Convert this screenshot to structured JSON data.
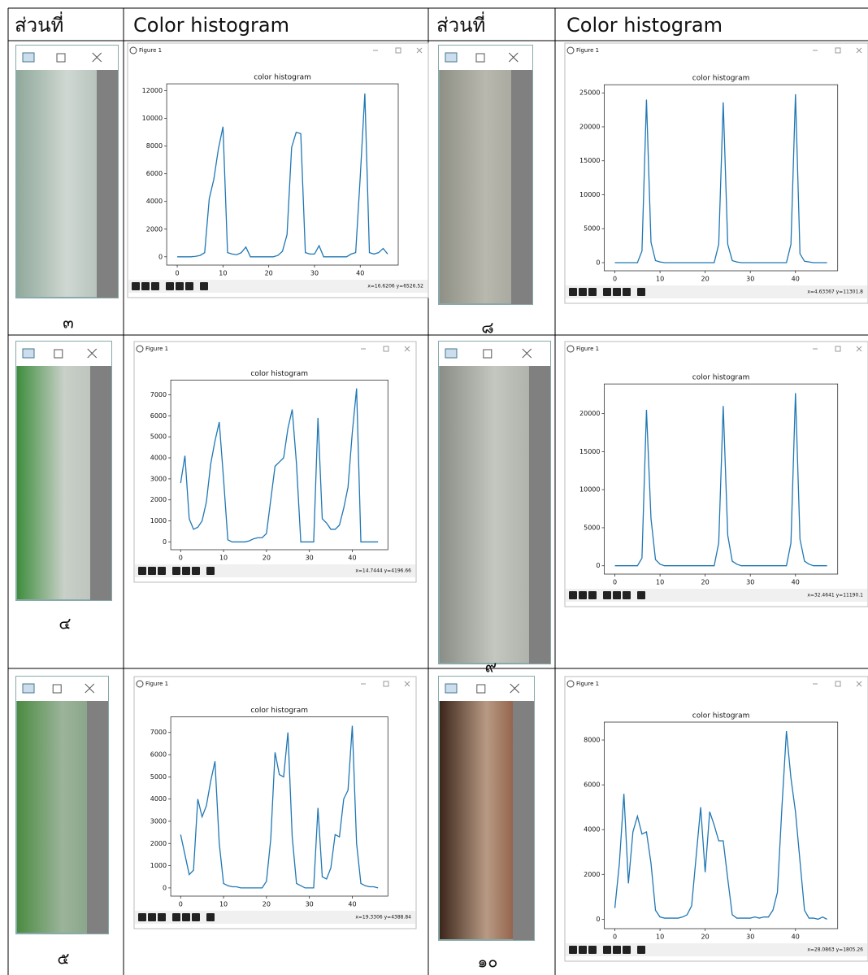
{
  "header": [
    "ส่วนที่",
    "Color histogram",
    "ส่วนที่",
    "Color histogram"
  ],
  "panels": [
    {
      "part_label": "๓",
      "window_title": "Figure 1",
      "status": "x=16.6206    y=6526.52",
      "chart": {
        "type": "line",
        "title": "color histogram",
        "color": "#1f77b4",
        "x": [
          0,
          1,
          2,
          3,
          4,
          5,
          6,
          7,
          8,
          9,
          10,
          11,
          12,
          13,
          14,
          15,
          16,
          17,
          18,
          19,
          20,
          21,
          22,
          23,
          24,
          25,
          26,
          27,
          28,
          29,
          30,
          31,
          32,
          33,
          34,
          35,
          36,
          37,
          38,
          39,
          40,
          41,
          42,
          43,
          44,
          45,
          46
        ],
        "values": [
          0,
          0,
          0,
          0,
          30,
          100,
          300,
          4200,
          5600,
          7800,
          9400,
          300,
          200,
          150,
          300,
          700,
          0,
          0,
          0,
          0,
          0,
          0,
          100,
          400,
          1600,
          7900,
          9000,
          8900,
          300,
          200,
          200,
          800,
          0,
          0,
          0,
          0,
          0,
          0,
          200,
          300,
          5800,
          11800,
          300,
          200,
          300,
          600,
          200
        ],
        "xlim": [
          -2.3,
          48.3
        ],
        "xticks": [
          0,
          10,
          20,
          30,
          40
        ],
        "ylim": [
          -600,
          12500
        ],
        "yticks": [
          0,
          2000,
          4000,
          6000,
          8000,
          10000,
          12000
        ]
      }
    },
    {
      "part_label": "๘",
      "window_title": "Figure 1",
      "status": "x=4.63367    y=11301.8",
      "chart": {
        "type": "line",
        "title": "color histogram",
        "color": "#1f77b4",
        "x": [
          0,
          1,
          2,
          3,
          4,
          5,
          6,
          7,
          8,
          9,
          10,
          11,
          12,
          13,
          14,
          15,
          16,
          17,
          18,
          19,
          20,
          21,
          22,
          23,
          24,
          25,
          26,
          27,
          28,
          29,
          30,
          31,
          32,
          33,
          34,
          35,
          36,
          37,
          38,
          39,
          40,
          41,
          42,
          43,
          44,
          45,
          46,
          47
        ],
        "values": [
          0,
          0,
          0,
          0,
          0,
          0,
          1700,
          24000,
          3000,
          300,
          100,
          0,
          0,
          0,
          0,
          0,
          0,
          0,
          0,
          0,
          0,
          0,
          0,
          2700,
          23600,
          2700,
          300,
          100,
          0,
          0,
          0,
          0,
          0,
          0,
          0,
          0,
          0,
          0,
          0,
          2700,
          24800,
          1300,
          200,
          100,
          0,
          0,
          0,
          0
        ],
        "xlim": [
          -2.35,
          49.35
        ],
        "xticks": [
          0,
          10,
          20,
          30,
          40
        ],
        "ylim": [
          -1200,
          26200
        ],
        "yticks": [
          0,
          5000,
          10000,
          15000,
          20000,
          25000
        ]
      }
    },
    {
      "part_label": "๔",
      "window_title": "Figure 1",
      "status": "x=14.7444    y=4196.66",
      "chart": {
        "type": "line",
        "title": "color histogram",
        "color": "#1f77b4",
        "x": [
          0,
          1,
          2,
          3,
          4,
          5,
          6,
          7,
          8,
          9,
          10,
          11,
          12,
          13,
          14,
          15,
          16,
          17,
          18,
          19,
          20,
          21,
          22,
          23,
          24,
          25,
          26,
          27,
          28,
          29,
          30,
          31,
          32,
          33,
          34,
          35,
          36,
          37,
          38,
          39,
          40,
          41,
          42,
          43,
          44,
          45,
          46
        ],
        "values": [
          2800,
          4100,
          1100,
          600,
          700,
          1000,
          1900,
          3700,
          4800,
          5700,
          3000,
          100,
          0,
          0,
          0,
          0,
          50,
          150,
          200,
          200,
          400,
          2000,
          3600,
          3800,
          4000,
          5400,
          6300,
          3700,
          0,
          0,
          0,
          0,
          5900,
          1100,
          900,
          600,
          600,
          800,
          1600,
          2600,
          5200,
          7300,
          0,
          0,
          0,
          0,
          0
        ],
        "xlim": [
          -2.3,
          48.3
        ],
        "xticks": [
          0,
          10,
          20,
          30,
          40
        ],
        "ylim": [
          -370,
          7700
        ],
        "yticks": [
          0,
          1000,
          2000,
          3000,
          4000,
          5000,
          6000,
          7000
        ]
      }
    },
    {
      "part_label": "๙",
      "window_title": "Figure 1",
      "status": "x=32.4641    y=11190.1",
      "chart": {
        "type": "line",
        "title": "color histogram",
        "color": "#1f77b4",
        "x": [
          0,
          1,
          2,
          3,
          4,
          5,
          6,
          7,
          8,
          9,
          10,
          11,
          12,
          13,
          14,
          15,
          16,
          17,
          18,
          19,
          20,
          21,
          22,
          23,
          24,
          25,
          26,
          27,
          28,
          29,
          30,
          31,
          32,
          33,
          34,
          35,
          36,
          37,
          38,
          39,
          40,
          41,
          42,
          43,
          44,
          45,
          46,
          47
        ],
        "values": [
          0,
          0,
          0,
          0,
          0,
          0,
          1000,
          20500,
          6200,
          800,
          200,
          0,
          0,
          0,
          0,
          0,
          0,
          0,
          0,
          0,
          0,
          0,
          0,
          3000,
          21000,
          4000,
          600,
          200,
          0,
          0,
          0,
          0,
          0,
          0,
          0,
          0,
          0,
          0,
          0,
          3000,
          22700,
          3500,
          600,
          200,
          0,
          0,
          0,
          0
        ],
        "xlim": [
          -2.35,
          49.35
        ],
        "xticks": [
          0,
          10,
          20,
          30,
          40
        ],
        "ylim": [
          -1100,
          23900
        ],
        "yticks": [
          0,
          5000,
          10000,
          15000,
          20000
        ]
      }
    },
    {
      "part_label": "๕",
      "window_title": "Figure 1",
      "status": "x=19.3306    y=4388.84",
      "chart": {
        "type": "line",
        "title": "color histogram",
        "color": "#1f77b4",
        "x": [
          0,
          1,
          2,
          3,
          4,
          5,
          6,
          7,
          8,
          9,
          10,
          11,
          12,
          13,
          14,
          15,
          16,
          17,
          18,
          19,
          20,
          21,
          22,
          23,
          24,
          25,
          26,
          27,
          28,
          29,
          30,
          31,
          32,
          33,
          34,
          35,
          36,
          37,
          38,
          39,
          40,
          41,
          42,
          43,
          44,
          45,
          46
        ],
        "values": [
          2400,
          1500,
          600,
          800,
          4000,
          3200,
          3700,
          4800,
          5700,
          2000,
          200,
          100,
          50,
          50,
          0,
          0,
          0,
          0,
          0,
          0,
          300,
          2200,
          6100,
          5100,
          5000,
          7000,
          2300,
          200,
          100,
          0,
          0,
          0,
          3600,
          500,
          400,
          900,
          2400,
          2300,
          4000,
          4400,
          7300,
          2000,
          200,
          100,
          50,
          50,
          0
        ],
        "xlim": [
          -2.3,
          48.3
        ],
        "xticks": [
          0,
          10,
          20,
          30,
          40
        ],
        "ylim": [
          -370,
          7700
        ],
        "yticks": [
          0,
          1000,
          2000,
          3000,
          4000,
          5000,
          6000,
          7000
        ]
      }
    },
    {
      "part_label": "๑๐",
      "window_title": "Figure 1",
      "status": "x=28.0863    y=1805.26",
      "chart": {
        "type": "line",
        "title": "color histogram",
        "color": "#1f77b4",
        "x": [
          0,
          1,
          2,
          3,
          4,
          5,
          6,
          7,
          8,
          9,
          10,
          11,
          12,
          13,
          14,
          15,
          16,
          17,
          18,
          19,
          20,
          21,
          22,
          23,
          24,
          25,
          26,
          27,
          28,
          29,
          30,
          31,
          32,
          33,
          34,
          35,
          36,
          37,
          38,
          39,
          40,
          41,
          42,
          43,
          44,
          45,
          46,
          47
        ],
        "values": [
          500,
          2500,
          5600,
          1600,
          3900,
          4600,
          3800,
          3900,
          2500,
          400,
          100,
          50,
          50,
          50,
          50,
          100,
          200,
          600,
          2800,
          5000,
          2100,
          4800,
          4200,
          3500,
          3500,
          1800,
          200,
          50,
          50,
          50,
          50,
          100,
          50,
          100,
          100,
          400,
          1200,
          5000,
          8400,
          6300,
          4800,
          2600,
          400,
          50,
          50,
          0,
          100,
          0
        ],
        "xlim": [
          -2.35,
          49.35
        ],
        "xticks": [
          0,
          10,
          20,
          30,
          40
        ],
        "ylim": [
          -420,
          8800
        ],
        "yticks": [
          0,
          2000,
          4000,
          6000,
          8000
        ]
      }
    }
  ]
}
